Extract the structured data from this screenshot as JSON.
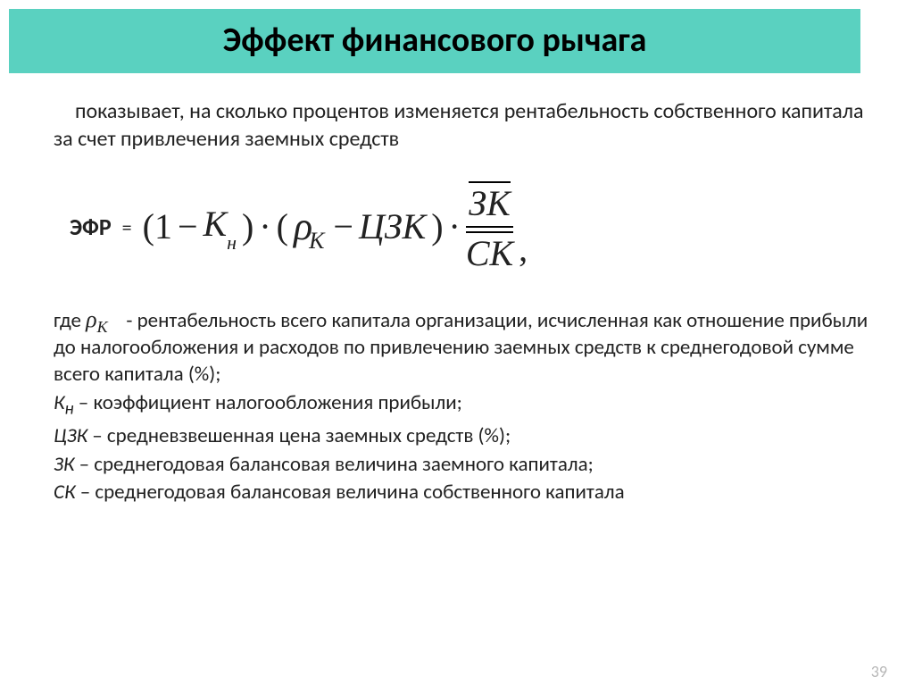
{
  "colors": {
    "title_bg": "#5ad1c0",
    "text": "#222222",
    "page_num": "#b8b8b8",
    "bg": "#ffffff"
  },
  "typography": {
    "title_fontsize": 38,
    "body_fontsize": 24,
    "defs_fontsize": 23,
    "formula_fontsize": 40,
    "font_family_body": "Calibri",
    "font_family_formula": "Times New Roman"
  },
  "title": "Эффект финансового рычага",
  "intro": "показывает, на сколько процентов изменяется рентабельность собственного капитала за счет привлечения заемных средств",
  "formula": {
    "label": "ЭФР",
    "eq": "=",
    "p1_open": "(1",
    "minus": "−",
    "K": "К",
    "K_sub": "н",
    "p1_close": ")",
    "dot": "·",
    "p2_open": "(",
    "rho": "ρ",
    "rho_sub": "К",
    "CZK": "ЦЗК",
    "p2_close": ")",
    "frac_top": "ЗК",
    "frac_bot": "СК"
  },
  "defs": {
    "where": "где",
    "rho": "ρ",
    "rho_sub": "К",
    "d1_rest": " - рентабельность всего капитала организации, исчисленная как отношение прибыли до налогообложения и расходов по привлечению заемных средств к среднегодовой сумме всего капитала (%);",
    "d2_term": "К",
    "d2_sub": "н",
    "d2_rest": " – коэффициент налогообложения прибыли;",
    "d3_term": "ЦЗК",
    "d3_rest": " – средневзвешенная цена заемных средств (%);",
    "d4_term": "ЗК",
    "d4_rest": " – среднегодовая балансовая величина заемного капитала;",
    "d5_term": "СК",
    "d5_rest": " – среднегодовая балансовая величина собственного капитала"
  },
  "page_number": "39"
}
